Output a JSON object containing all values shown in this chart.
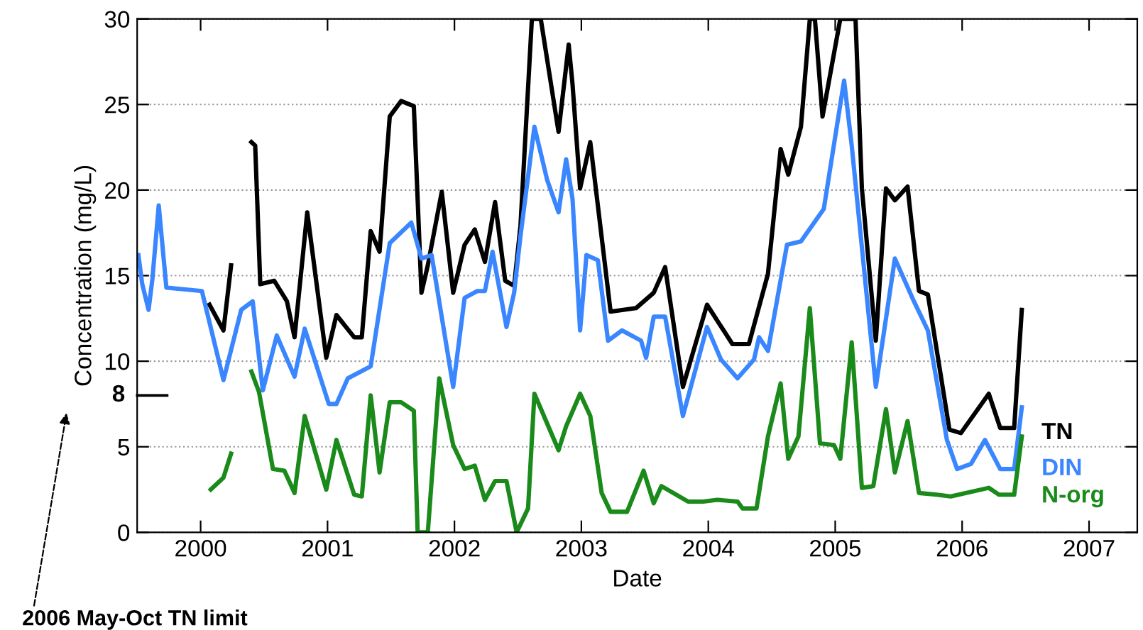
{
  "chart_data": {
    "type": "line",
    "xlabel": "Date",
    "ylabel": "Concentration (mg/L)",
    "xlim": [
      1999.5,
      2007.38
    ],
    "xticks": [
      2000,
      2001,
      2002,
      2003,
      2004,
      2005,
      2006,
      2007
    ],
    "ylim": [
      0,
      30
    ],
    "yticks": [
      0,
      5,
      10,
      15,
      20,
      25,
      30
    ],
    "grid": "y",
    "marker": "none",
    "line_style": "solid",
    "ref_lines": [
      {
        "axis": "y",
        "value": 8,
        "label": "8",
        "color": "#000000"
      }
    ],
    "annotations": [
      "2006 May-Oct TN limit"
    ],
    "series": [
      {
        "name": "TN",
        "color": "#000000",
        "x": [
          2000.07,
          2000.18,
          2000.24,
          2000.3,
          2000.4,
          2000.43,
          2000.47,
          2000.58,
          2000.68,
          2000.74,
          2000.84,
          2000.99,
          2001.07,
          2001.21,
          2001.27,
          2001.34,
          2001.41,
          2001.49,
          2001.58,
          2001.68,
          2001.74,
          2001.79,
          2001.9,
          2001.99,
          2002.08,
          2002.16,
          2002.24,
          2002.32,
          2002.4,
          2002.47,
          2002.52,
          2002.61,
          2002.68,
          2002.82,
          2002.9,
          2002.93,
          2002.99,
          2003.07,
          2003.23,
          2003.43,
          2003.57,
          2003.66,
          2003.8,
          2003.99,
          2004.19,
          2004.32,
          2004.47,
          2004.57,
          2004.63,
          2004.73,
          2004.8,
          2004.84,
          2004.9,
          2005.04,
          2005.16,
          2005.21,
          2005.32,
          2005.4,
          2005.47,
          2005.57,
          2005.66,
          2005.73,
          2005.9,
          2005.99,
          2006.21,
          2006.3,
          2006.41,
          2006.47
        ],
        "values": [
          13.3,
          11.8,
          15.6,
          null,
          22.8,
          22.6,
          14.5,
          14.7,
          13.5,
          11.4,
          18.7,
          10.2,
          12.7,
          11.4,
          11.4,
          17.6,
          16.4,
          24.3,
          25.2,
          24.9,
          14.0,
          15.6,
          19.9,
          14.0,
          16.8,
          17.7,
          15.8,
          19.3,
          14.7,
          14.4,
          17.9,
          30,
          30,
          23.4,
          28.5,
          26.2,
          20.1,
          22.8,
          12.9,
          13.1,
          14.0,
          15.5,
          8.5,
          13.3,
          11.0,
          11.0,
          15.1,
          22.4,
          20.9,
          23.7,
          30,
          30,
          24.3,
          30,
          30,
          20.1,
          11.2,
          20.1,
          19.4,
          20.2,
          14.1,
          13.9,
          6.0,
          5.8,
          8.1,
          6.1,
          6.1,
          13.0
        ]
      },
      {
        "name": "DIN",
        "color": "#3a86ff",
        "x": [
          1999.51,
          1999.54,
          1999.59,
          1999.62,
          1999.67,
          1999.73,
          2000.01,
          2000.18,
          2000.32,
          2000.41,
          2000.49,
          2000.6,
          2000.74,
          2000.82,
          2001.01,
          2001.07,
          2001.16,
          2001.34,
          2001.49,
          2001.66,
          2001.74,
          2001.82,
          2001.99,
          2002.08,
          2002.18,
          2002.24,
          2002.3,
          2002.41,
          2002.47,
          2002.52,
          2002.63,
          2002.73,
          2002.82,
          2002.88,
          2002.93,
          2002.99,
          2003.04,
          2003.13,
          2003.21,
          2003.32,
          2003.47,
          2003.51,
          2003.57,
          2003.66,
          2003.8,
          2003.99,
          2004.1,
          2004.23,
          2004.36,
          2004.4,
          2004.47,
          2004.62,
          2004.73,
          2004.91,
          2005.07,
          2005.13,
          2005.32,
          2005.47,
          2005.62,
          2005.73,
          2005.88,
          2005.96,
          2006.07,
          2006.18,
          2006.3,
          2006.41,
          2006.47
        ],
        "values": [
          16.2,
          14.5,
          13.0,
          14.8,
          19.1,
          14.3,
          14.1,
          8.9,
          13.0,
          13.5,
          8.3,
          11.5,
          9.1,
          11.9,
          7.5,
          7.5,
          9.0,
          9.7,
          16.9,
          18.1,
          16.0,
          16.2,
          8.5,
          13.7,
          14.1,
          14.1,
          16.4,
          12.0,
          14.0,
          17.3,
          23.7,
          20.6,
          18.7,
          21.8,
          19.5,
          11.8,
          16.2,
          15.9,
          11.2,
          11.8,
          11.2,
          10.2,
          12.6,
          12.6,
          6.8,
          12.0,
          10.1,
          9.0,
          10.1,
          11.4,
          10.6,
          16.8,
          17.0,
          18.9,
          26.4,
          22.6,
          8.5,
          16.0,
          13.5,
          11.8,
          5.4,
          3.7,
          4.0,
          5.4,
          3.7,
          3.7,
          7.3
        ]
      },
      {
        "name": "N-org",
        "color": "#1a8a1a",
        "x": [
          2000.08,
          2000.18,
          2000.24,
          2000.3,
          2000.4,
          2000.46,
          2000.57,
          2000.66,
          2000.74,
          2000.82,
          2000.99,
          2001.07,
          2001.21,
          2001.27,
          2001.34,
          2001.41,
          2001.49,
          2001.58,
          2001.68,
          2001.71,
          2001.79,
          2001.88,
          2001.99,
          2002.08,
          2002.16,
          2002.24,
          2002.32,
          2002.41,
          2002.49,
          2002.58,
          2002.63,
          2002.82,
          2002.88,
          2002.99,
          2003.07,
          2003.16,
          2003.23,
          2003.36,
          2003.49,
          2003.57,
          2003.63,
          2003.84,
          2003.96,
          2004.07,
          2004.23,
          2004.27,
          2004.38,
          2004.47,
          2004.57,
          2004.63,
          2004.71,
          2004.8,
          2004.88,
          2004.99,
          2005.04,
          2005.13,
          2005.21,
          2005.3,
          2005.4,
          2005.47,
          2005.57,
          2005.66,
          2005.8,
          2005.91,
          2006.21,
          2006.29,
          2006.41,
          2006.47
        ],
        "values": [
          2.5,
          3.2,
          4.6,
          null,
          9.4,
          8.2,
          3.7,
          3.6,
          2.3,
          6.8,
          2.5,
          5.4,
          2.2,
          2.1,
          8.0,
          3.5,
          7.6,
          7.6,
          7.1,
          0,
          0,
          9.0,
          5.1,
          3.7,
          3.9,
          1.9,
          3.0,
          3.0,
          0,
          1.4,
          8.1,
          4.8,
          6.2,
          8.1,
          6.8,
          2.3,
          1.2,
          1.2,
          3.6,
          1.7,
          2.7,
          1.8,
          1.8,
          1.9,
          1.8,
          1.4,
          1.4,
          5.6,
          8.7,
          4.3,
          5.6,
          13.1,
          5.2,
          5.1,
          4.3,
          11.1,
          2.6,
          2.7,
          7.2,
          3.5,
          6.5,
          2.3,
          2.2,
          2.1,
          2.6,
          2.2,
          2.2,
          5.6
        ]
      }
    ]
  }
}
